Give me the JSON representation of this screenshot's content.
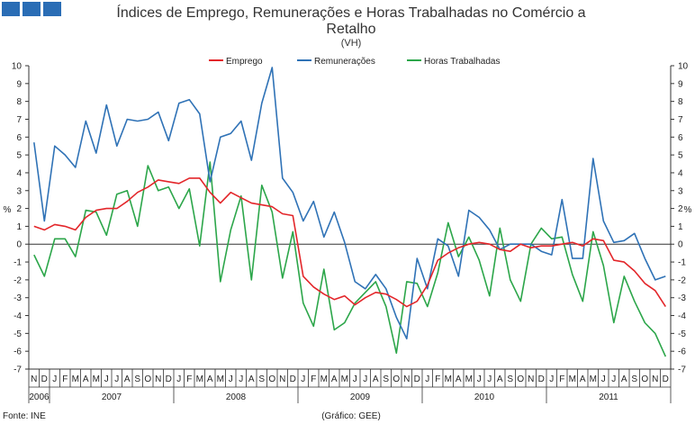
{
  "chart_data": {
    "type": "line",
    "title": "Índices de Emprego, Remunerações e Horas Trabalhadas no Comércio a Retalho",
    "subtitle": "(VH)",
    "ylabel_left": "%",
    "ylabel_right": "%",
    "ylim": [
      -7,
      10
    ],
    "yticks": [
      -7,
      -6,
      -5,
      -4,
      -3,
      -2,
      -1,
      0,
      1,
      2,
      3,
      4,
      5,
      6,
      7,
      8,
      9,
      10
    ],
    "months": [
      "N",
      "D",
      "J",
      "F",
      "M",
      "A",
      "M",
      "J",
      "J",
      "A",
      "S",
      "O",
      "N",
      "D",
      "J",
      "F",
      "M",
      "A",
      "M",
      "J",
      "J",
      "A",
      "S",
      "O",
      "N",
      "D",
      "J",
      "F",
      "M",
      "A",
      "M",
      "J",
      "J",
      "A",
      "S",
      "O",
      "N",
      "D",
      "J",
      "F",
      "M",
      "A",
      "M",
      "J",
      "J",
      "A",
      "S",
      "O",
      "N",
      "D",
      "J",
      "F",
      "M",
      "A",
      "M",
      "J",
      "J",
      "A",
      "S",
      "O",
      "N",
      "D"
    ],
    "years": [
      {
        "label": "2006",
        "start": 0,
        "count": 2
      },
      {
        "label": "2007",
        "start": 2,
        "count": 12
      },
      {
        "label": "2008",
        "start": 14,
        "count": 12
      },
      {
        "label": "2009",
        "start": 26,
        "count": 12
      },
      {
        "label": "2010",
        "start": 38,
        "count": 12
      },
      {
        "label": "2011",
        "start": 50,
        "count": 12
      }
    ],
    "series": [
      {
        "name": "Emprego",
        "color": "#e3262a",
        "values": [
          1.0,
          0.8,
          1.1,
          1.0,
          0.8,
          1.5,
          1.9,
          2.0,
          2.0,
          2.4,
          2.9,
          3.2,
          3.6,
          3.5,
          3.4,
          3.7,
          3.7,
          2.9,
          2.3,
          2.9,
          2.6,
          2.3,
          2.2,
          2.1,
          1.7,
          1.6,
          -1.8,
          -2.4,
          -2.8,
          -3.1,
          -2.9,
          -3.4,
          -3.0,
          -2.7,
          -2.8,
          -3.1,
          -3.5,
          -3.2,
          -2.3,
          -0.9,
          -0.5,
          -0.2,
          0.0,
          0.1,
          0.0,
          -0.3,
          -0.4,
          0.0,
          -0.2,
          -0.1,
          -0.1,
          0.0,
          0.1,
          -0.1,
          0.3,
          0.2,
          -0.9,
          -1.0,
          -1.5,
          -2.2,
          -2.6,
          -3.5
        ]
      },
      {
        "name": "Remunerações",
        "color": "#2f72b6",
        "values": [
          5.7,
          1.3,
          5.5,
          5.0,
          4.3,
          6.9,
          5.1,
          7.8,
          5.5,
          7.0,
          6.9,
          7.0,
          7.4,
          5.8,
          7.9,
          8.1,
          7.3,
          3.5,
          6.0,
          6.2,
          6.9,
          4.7,
          7.9,
          9.9,
          3.7,
          2.9,
          1.3,
          2.4,
          0.4,
          1.8,
          0.1,
          -2.1,
          -2.5,
          -1.7,
          -2.5,
          -4.1,
          -5.3,
          -0.8,
          -2.5,
          0.3,
          -0.1,
          -1.8,
          1.9,
          1.5,
          0.8,
          -0.3,
          0.0,
          0.0,
          0.0,
          -0.4,
          -0.6,
          2.5,
          -0.8,
          -0.8,
          4.8,
          1.3,
          0.1,
          0.2,
          0.6,
          -0.8,
          -2.0,
          -1.8
        ]
      },
      {
        "name": "Horas Trabalhadas",
        "color": "#2ca64a",
        "values": [
          -0.6,
          -1.8,
          0.3,
          0.3,
          -0.7,
          1.9,
          1.8,
          0.5,
          2.8,
          3.0,
          1.0,
          4.4,
          3.0,
          3.2,
          2.0,
          3.1,
          -0.1,
          4.6,
          -2.1,
          0.8,
          2.7,
          -2.0,
          3.3,
          1.8,
          -1.9,
          0.7,
          -3.3,
          -4.6,
          -1.4,
          -4.8,
          -4.4,
          -3.3,
          -2.7,
          -2.1,
          -3.5,
          -6.1,
          -2.1,
          -2.2,
          -3.5,
          -1.6,
          1.2,
          -0.7,
          0.4,
          -0.9,
          -2.9,
          0.9,
          -2.0,
          -3.2,
          0.0,
          0.9,
          0.3,
          0.4,
          -1.7,
          -3.2,
          0.7,
          -1.2,
          -4.4,
          -1.8,
          -3.2,
          -4.4,
          -5.0,
          -6.3
        ]
      }
    ],
    "legend": [
      "Emprego",
      "Remunerações",
      "Horas Trabalhadas"
    ],
    "legend_position": "top-center",
    "grid": false
  },
  "footer": {
    "source": "Fonte: INE",
    "credit": "(Gráfico: GEE)"
  },
  "colors": {
    "header_squares": "#2a6db5",
    "axis": "#333333"
  }
}
